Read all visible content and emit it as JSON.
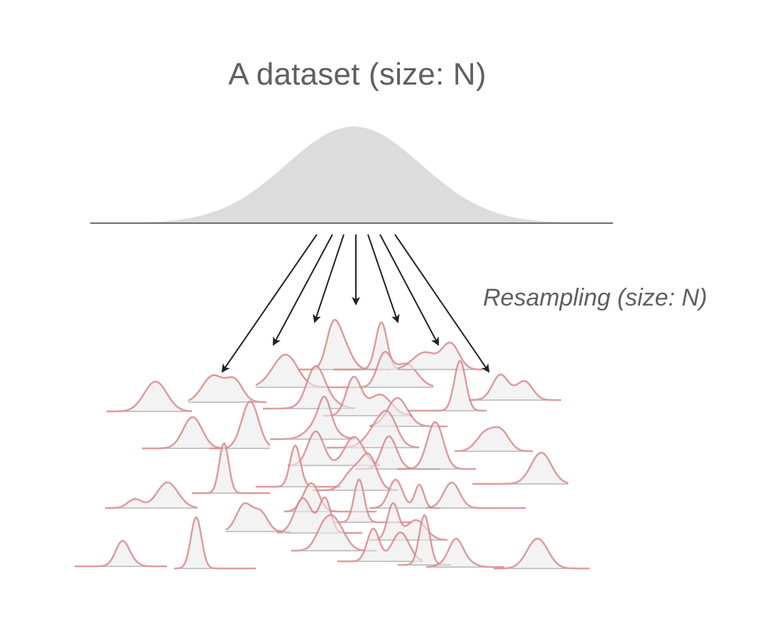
{
  "title": "A dataset (size: N)",
  "resampling_label": "Resampling (size: N)",
  "colors": {
    "population_fill": "#dcdcdd",
    "axis_line": "#6e6e6e",
    "arrow": "#222222",
    "sample_stroke": "#d98a8a",
    "sample_fill": "#ececec",
    "sample_baseline": "#a9a9a9",
    "text": "#5f5f5f"
  },
  "icons": {
    "arrow": "arrow-down-icon"
  }
}
